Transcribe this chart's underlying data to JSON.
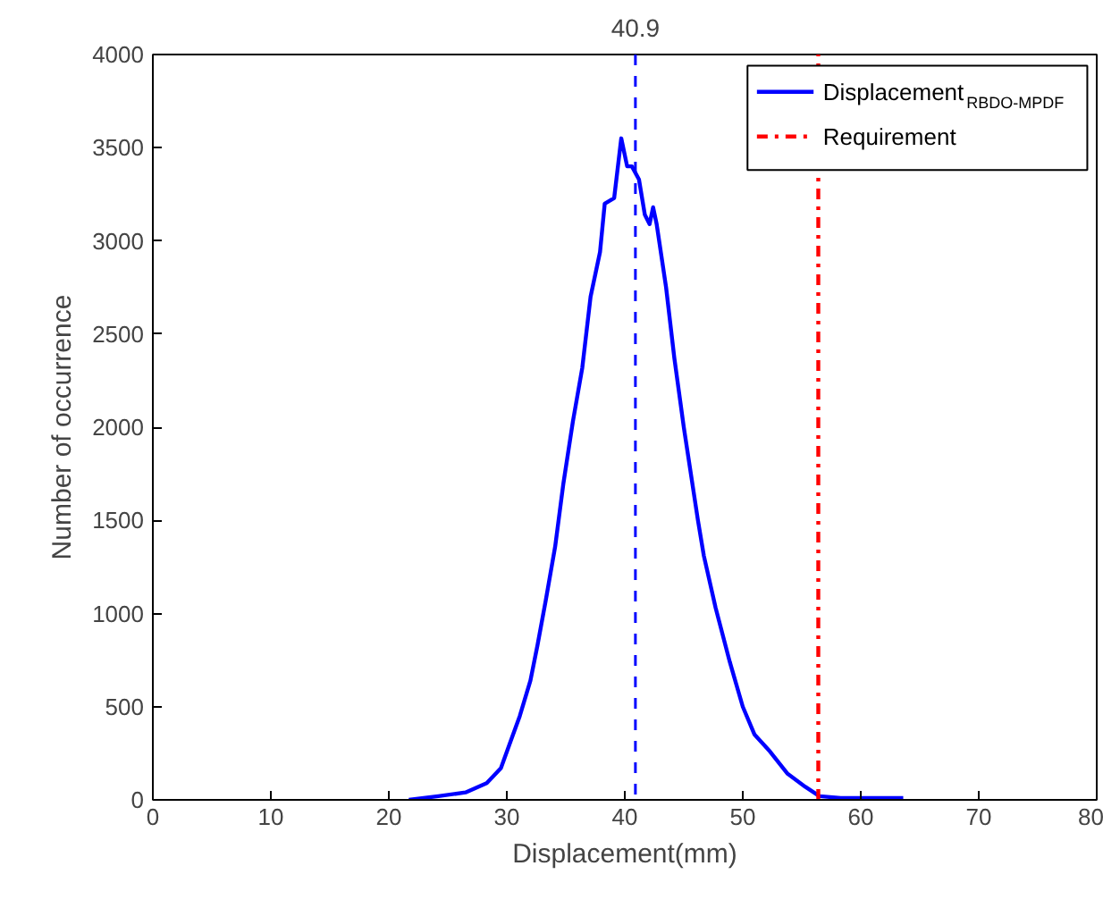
{
  "chart_data": {
    "type": "line",
    "xlabel": "Displacement(mm)",
    "ylabel": "Number of occurrence",
    "xlim": [
      0,
      80
    ],
    "xticks": [
      0,
      10,
      20,
      30,
      40,
      50,
      60,
      70,
      80
    ],
    "ylim": [
      0,
      4000
    ],
    "yticks": [
      0,
      500,
      1000,
      1500,
      2000,
      2500,
      3000,
      3500,
      4000
    ],
    "grid": false,
    "legend": "top right",
    "series": [
      {
        "name": "Displacement$_{RBDO-MPDF}$",
        "color": "#0000ff",
        "line_style": "solid",
        "x": [
          21.7,
          24.2,
          26.5,
          28.3,
          29.5,
          30.3,
          31.1,
          32,
          32.6,
          33.3,
          34.1,
          34.8,
          35.6,
          36.4,
          37.1,
          37.9,
          38.3,
          39.1,
          39.7,
          40.2,
          40.6,
          41.2,
          41.7,
          42.1,
          42.4,
          42.7,
          43.5,
          44.2,
          45,
          46.2,
          46.7,
          47.7,
          48.9,
          50,
          51,
          52.3,
          53.8,
          55.3,
          56.5,
          58.3,
          61.4,
          63.6
        ],
        "values": [
          0,
          20,
          40,
          90,
          170,
          310,
          450,
          640,
          830,
          1070,
          1360,
          1700,
          2030,
          2320,
          2700,
          2940,
          3200,
          3230,
          3550,
          3400,
          3400,
          3330,
          3140,
          3090,
          3180,
          3090,
          2750,
          2370,
          2000,
          1500,
          1310,
          1030,
          740,
          500,
          350,
          260,
          140,
          70,
          20,
          10,
          10,
          10
        ]
      },
      {
        "name": "Requirement",
        "color": "#ff0000",
        "line_style": "dashdot",
        "x": [
          56.4,
          56.4
        ],
        "values": [
          0,
          4000
        ]
      }
    ],
    "ref_lines": [
      {
        "axis": "x",
        "value": 40.9,
        "label": "40.9",
        "color": "#0000ff",
        "line_style": "dashed"
      }
    ]
  }
}
